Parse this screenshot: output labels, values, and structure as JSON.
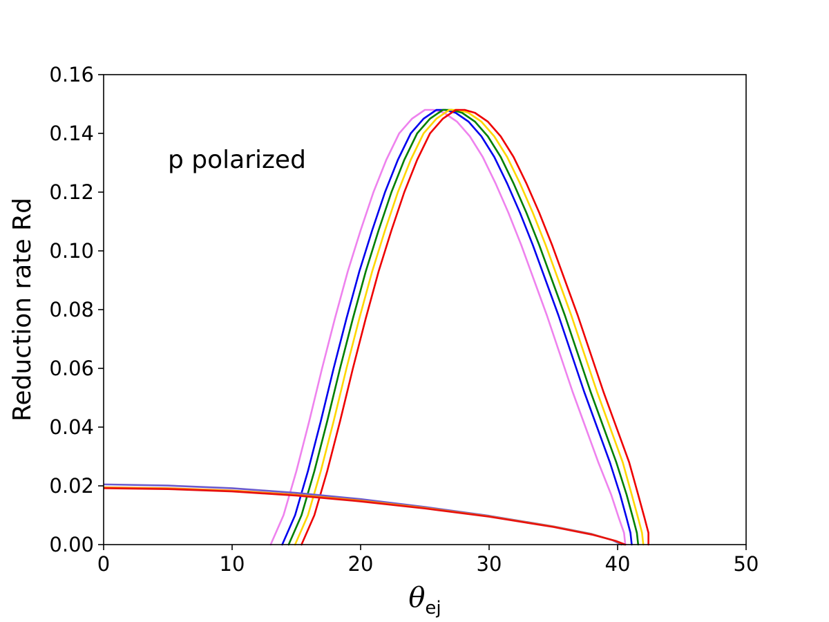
{
  "chart_data": {
    "type": "line",
    "title": "",
    "xlabel": "θ",
    "xlabel_subscript": "ej",
    "ylabel": "Reduction rate Rd",
    "annotation": "p polarized",
    "xlim": [
      0,
      50
    ],
    "ylim": [
      0,
      0.16
    ],
    "xticks": [
      0,
      10,
      20,
      30,
      40,
      50
    ],
    "yticks": [
      0.0,
      0.02,
      0.04,
      0.06,
      0.08,
      0.1,
      0.12,
      0.14,
      0.16
    ],
    "xtick_labels": [
      "0",
      "10",
      "20",
      "30",
      "40",
      "50"
    ],
    "ytick_labels": [
      "0.00",
      "0.02",
      "0.04",
      "0.06",
      "0.08",
      "0.10",
      "0.12",
      "0.14",
      "0.16"
    ],
    "grid": false,
    "legend": "none",
    "series": [
      {
        "color": "#ee82ee",
        "points": [
          [
            13.0,
            0.0
          ],
          [
            13.4,
            0.004
          ],
          [
            14.0,
            0.01
          ],
          [
            15.0,
            0.025
          ],
          [
            16.0,
            0.042
          ],
          [
            17.0,
            0.06
          ],
          [
            18.0,
            0.077
          ],
          [
            19.0,
            0.093
          ],
          [
            20.0,
            0.107
          ],
          [
            21.0,
            0.12
          ],
          [
            22.0,
            0.131
          ],
          [
            23.0,
            0.14
          ],
          [
            24.0,
            0.145
          ],
          [
            25.0,
            0.148
          ],
          [
            25.7,
            0.148
          ],
          [
            26.5,
            0.147
          ],
          [
            27.5,
            0.144
          ],
          [
            28.5,
            0.139
          ],
          [
            29.5,
            0.132
          ],
          [
            30.5,
            0.123
          ],
          [
            31.5,
            0.113
          ],
          [
            32.5,
            0.102
          ],
          [
            33.5,
            0.09
          ],
          [
            34.5,
            0.078
          ],
          [
            35.5,
            0.065
          ],
          [
            36.5,
            0.052
          ],
          [
            37.5,
            0.04
          ],
          [
            38.5,
            0.028
          ],
          [
            39.5,
            0.017
          ],
          [
            40.1,
            0.009
          ],
          [
            40.5,
            0.004
          ],
          [
            40.6,
            0.0
          ]
        ]
      },
      {
        "color": "#0000ee",
        "points": [
          [
            13.9,
            0.0
          ],
          [
            14.3,
            0.004
          ],
          [
            14.9,
            0.01
          ],
          [
            15.9,
            0.025
          ],
          [
            16.9,
            0.042
          ],
          [
            17.9,
            0.06
          ],
          [
            18.9,
            0.077
          ],
          [
            19.9,
            0.093
          ],
          [
            20.9,
            0.107
          ],
          [
            21.9,
            0.12
          ],
          [
            22.9,
            0.131
          ],
          [
            23.9,
            0.14
          ],
          [
            24.9,
            0.145
          ],
          [
            25.9,
            0.148
          ],
          [
            26.6,
            0.148
          ],
          [
            27.4,
            0.147
          ],
          [
            28.4,
            0.144
          ],
          [
            29.4,
            0.139
          ],
          [
            30.4,
            0.132
          ],
          [
            31.4,
            0.123
          ],
          [
            32.4,
            0.113
          ],
          [
            33.4,
            0.102
          ],
          [
            34.4,
            0.09
          ],
          [
            35.4,
            0.078
          ],
          [
            36.4,
            0.065
          ],
          [
            37.4,
            0.052
          ],
          [
            38.4,
            0.04
          ],
          [
            39.4,
            0.028
          ],
          [
            40.2,
            0.017
          ],
          [
            40.7,
            0.009
          ],
          [
            41.0,
            0.004
          ],
          [
            41.1,
            0.0
          ]
        ]
      },
      {
        "color": "#008000",
        "points": [
          [
            14.4,
            0.0
          ],
          [
            14.8,
            0.004
          ],
          [
            15.4,
            0.01
          ],
          [
            16.4,
            0.025
          ],
          [
            17.4,
            0.042
          ],
          [
            18.4,
            0.06
          ],
          [
            19.4,
            0.077
          ],
          [
            20.4,
            0.093
          ],
          [
            21.4,
            0.107
          ],
          [
            22.4,
            0.12
          ],
          [
            23.4,
            0.131
          ],
          [
            24.4,
            0.14
          ],
          [
            25.4,
            0.145
          ],
          [
            26.4,
            0.148
          ],
          [
            27.1,
            0.148
          ],
          [
            27.9,
            0.147
          ],
          [
            28.9,
            0.144
          ],
          [
            29.9,
            0.139
          ],
          [
            30.9,
            0.132
          ],
          [
            31.9,
            0.123
          ],
          [
            32.9,
            0.113
          ],
          [
            33.9,
            0.102
          ],
          [
            34.9,
            0.09
          ],
          [
            35.9,
            0.078
          ],
          [
            36.9,
            0.065
          ],
          [
            37.9,
            0.052
          ],
          [
            38.9,
            0.04
          ],
          [
            39.9,
            0.028
          ],
          [
            40.7,
            0.017
          ],
          [
            41.2,
            0.009
          ],
          [
            41.5,
            0.004
          ],
          [
            41.6,
            0.0
          ]
        ]
      },
      {
        "color": "#ffd700",
        "points": [
          [
            14.9,
            0.0
          ],
          [
            15.3,
            0.004
          ],
          [
            15.9,
            0.01
          ],
          [
            16.9,
            0.025
          ],
          [
            17.9,
            0.042
          ],
          [
            18.9,
            0.06
          ],
          [
            19.9,
            0.077
          ],
          [
            20.9,
            0.093
          ],
          [
            21.9,
            0.107
          ],
          [
            22.9,
            0.12
          ],
          [
            23.9,
            0.131
          ],
          [
            24.9,
            0.14
          ],
          [
            25.9,
            0.145
          ],
          [
            26.9,
            0.148
          ],
          [
            27.6,
            0.148
          ],
          [
            28.4,
            0.147
          ],
          [
            29.4,
            0.144
          ],
          [
            30.4,
            0.139
          ],
          [
            31.4,
            0.132
          ],
          [
            32.4,
            0.123
          ],
          [
            33.4,
            0.113
          ],
          [
            34.4,
            0.102
          ],
          [
            35.4,
            0.09
          ],
          [
            36.4,
            0.078
          ],
          [
            37.4,
            0.065
          ],
          [
            38.4,
            0.052
          ],
          [
            39.4,
            0.04
          ],
          [
            40.4,
            0.028
          ],
          [
            41.1,
            0.017
          ],
          [
            41.6,
            0.009
          ],
          [
            41.9,
            0.004
          ],
          [
            42.0,
            0.0
          ]
        ]
      },
      {
        "color": "#ee0000",
        "points": [
          [
            15.4,
            0.0
          ],
          [
            15.8,
            0.004
          ],
          [
            16.4,
            0.01
          ],
          [
            17.4,
            0.025
          ],
          [
            18.4,
            0.042
          ],
          [
            19.4,
            0.06
          ],
          [
            20.4,
            0.077
          ],
          [
            21.4,
            0.093
          ],
          [
            22.4,
            0.107
          ],
          [
            23.4,
            0.12
          ],
          [
            24.4,
            0.131
          ],
          [
            25.4,
            0.14
          ],
          [
            26.4,
            0.145
          ],
          [
            27.4,
            0.148
          ],
          [
            28.1,
            0.148
          ],
          [
            28.9,
            0.147
          ],
          [
            29.9,
            0.144
          ],
          [
            30.9,
            0.139
          ],
          [
            31.9,
            0.132
          ],
          [
            32.9,
            0.123
          ],
          [
            33.9,
            0.113
          ],
          [
            34.9,
            0.102
          ],
          [
            35.9,
            0.09
          ],
          [
            36.9,
            0.078
          ],
          [
            37.9,
            0.065
          ],
          [
            38.9,
            0.052
          ],
          [
            39.9,
            0.04
          ],
          [
            40.9,
            0.028
          ],
          [
            41.6,
            0.017
          ],
          [
            42.1,
            0.009
          ],
          [
            42.4,
            0.004
          ],
          [
            42.4,
            0.0
          ]
        ]
      },
      {
        "color": "#6a5acd",
        "points": [
          [
            0,
            0.0205
          ],
          [
            5,
            0.0201
          ],
          [
            10,
            0.0192
          ],
          [
            15,
            0.0176
          ],
          [
            20,
            0.0155
          ],
          [
            25,
            0.0128
          ],
          [
            30,
            0.0098
          ],
          [
            35,
            0.0062
          ],
          [
            38,
            0.0036
          ],
          [
            39.6,
            0.0015
          ],
          [
            40.3,
            0.0
          ]
        ]
      },
      {
        "color": "#ff8c00",
        "points": [
          [
            0,
            0.0195
          ],
          [
            5,
            0.0192
          ],
          [
            10,
            0.0184
          ],
          [
            15,
            0.017
          ],
          [
            20,
            0.015
          ],
          [
            25,
            0.0125
          ],
          [
            30,
            0.0096
          ],
          [
            35,
            0.0061
          ],
          [
            38,
            0.0035
          ],
          [
            39.8,
            0.0013
          ],
          [
            40.5,
            0.0
          ]
        ]
      },
      {
        "color": "#e61010",
        "points": [
          [
            0,
            0.0192
          ],
          [
            5,
            0.0189
          ],
          [
            10,
            0.0181
          ],
          [
            15,
            0.0167
          ],
          [
            20,
            0.0147
          ],
          [
            25,
            0.0123
          ],
          [
            30,
            0.0095
          ],
          [
            35,
            0.006
          ],
          [
            38,
            0.0034
          ],
          [
            39.9,
            0.0012
          ],
          [
            40.6,
            0.0
          ]
        ]
      }
    ]
  }
}
